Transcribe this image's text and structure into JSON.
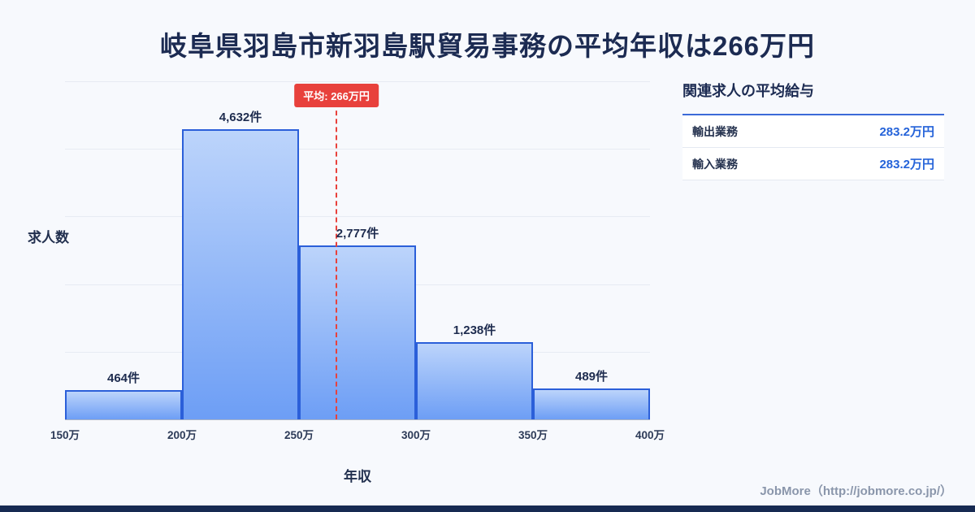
{
  "title": "岐阜県羽島市新羽島駅貿易事務の平均年収は266万円",
  "chart_data": {
    "type": "bar",
    "title": "岐阜県羽島市新羽島駅貿易事務の平均年収は266万円",
    "xlabel": "年収",
    "ylabel": "求人数",
    "x_ticks": [
      "150万",
      "200万",
      "250万",
      "300万",
      "350万",
      "400万"
    ],
    "bins": [
      [
        150,
        200
      ],
      [
        200,
        250
      ],
      [
        250,
        300
      ],
      [
        300,
        350
      ],
      [
        350,
        400
      ]
    ],
    "values": [
      464,
      4632,
      2777,
      1238,
      489
    ],
    "bar_labels": [
      "464件",
      "4,632件",
      "2,777件",
      "1,238件",
      "489件"
    ],
    "average": {
      "value": 266,
      "label": "平均: 266万円"
    },
    "x_range": [
      150,
      400
    ],
    "ylim": [
      0,
      5400
    ],
    "grid": true,
    "legend": "none"
  },
  "side_panel": {
    "heading": "関連求人の平均給与",
    "rows": [
      {
        "label": "輸出業務",
        "value": "283.2万円"
      },
      {
        "label": "輸入業務",
        "value": "283.2万円"
      }
    ]
  },
  "footer": {
    "credit": "JobMore（http://jobmore.co.jp/）"
  },
  "colors": {
    "background": "#f7f9fd",
    "title_text": "#1c2b52",
    "bar_fill_top": "#bcd4fb",
    "bar_fill_bottom": "#6d9ef5",
    "bar_border": "#2b5fd9",
    "average_accent": "#e8413c",
    "value_text_blue": "#2563d9",
    "gridline": "#e7ebf3",
    "bottom_bar": "#172a52",
    "footer_text": "#8a96ab"
  }
}
